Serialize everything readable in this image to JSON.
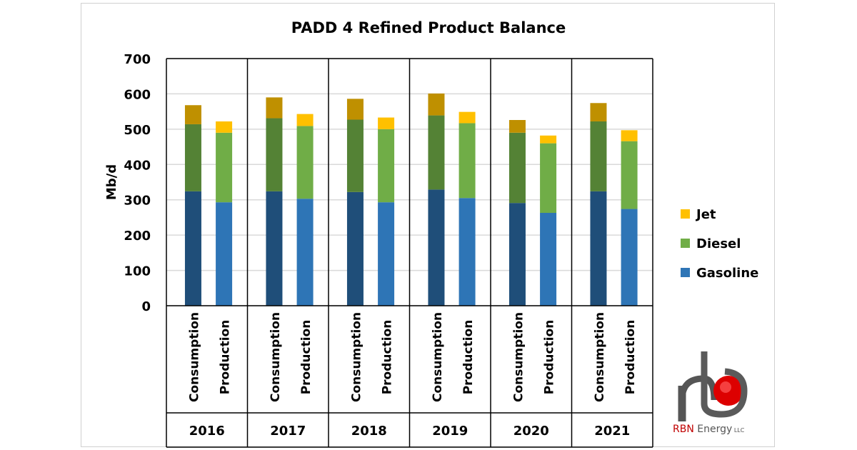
{
  "chart_data": {
    "type": "bar",
    "stacked": true,
    "title": "PADD 4 Refined Product Balance",
    "ylabel": "Mb/d",
    "ylim": [
      0,
      700
    ],
    "yticks": [
      0,
      100,
      200,
      300,
      400,
      500,
      600,
      700
    ],
    "grid": true,
    "legend_position": "right",
    "years": [
      "2016",
      "2017",
      "2018",
      "2019",
      "2020",
      "2021"
    ],
    "subcategories": [
      "Consumption",
      "Production"
    ],
    "series": [
      {
        "name": "Gasoline",
        "consumption_color": "#1F4E79",
        "production_color": "#2E75B6",
        "consumption": [
          324,
          324,
          322,
          329,
          291,
          324
        ],
        "production": [
          293,
          303,
          293,
          305,
          263,
          274
        ]
      },
      {
        "name": "Diesel",
        "consumption_color": "#548235",
        "production_color": "#70AD47",
        "consumption": [
          190,
          207,
          205,
          210,
          199,
          198
        ],
        "production": [
          197,
          206,
          207,
          212,
          197,
          192
        ]
      },
      {
        "name": "Jet",
        "consumption_color": "#BF9000",
        "production_color": "#FFC000",
        "consumption": [
          54,
          59,
          59,
          62,
          36,
          52
        ],
        "production": [
          32,
          34,
          33,
          32,
          22,
          31
        ]
      }
    ],
    "legend_order": [
      "Jet",
      "Diesel",
      "Gasoline"
    ]
  },
  "logo": {
    "text": "RBN Energy",
    "suffix": "LLC"
  }
}
